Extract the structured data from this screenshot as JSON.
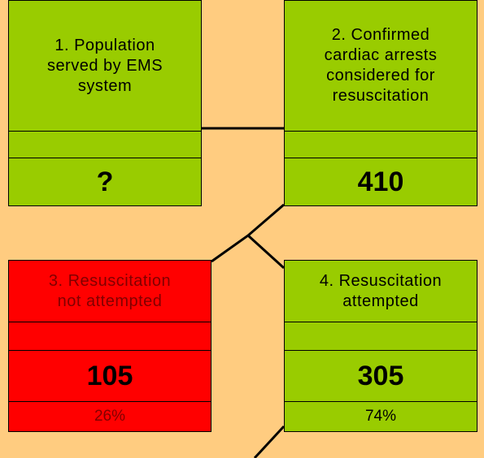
{
  "nodes": [
    {
      "label_lines": [
        "1. Population",
        "served by EMS",
        "system"
      ],
      "value": "?"
    },
    {
      "label_lines": [
        "2. Confirmed",
        "cardiac arrests",
        "considered for",
        "resuscitation"
      ],
      "value": "410"
    },
    {
      "label_lines": [
        "3. Resuscitation",
        "not attempted"
      ],
      "value": "105",
      "percent": "26%"
    },
    {
      "label_lines": [
        "4. Resuscitation",
        "attempted"
      ],
      "value": "305",
      "percent": "74%"
    }
  ]
}
